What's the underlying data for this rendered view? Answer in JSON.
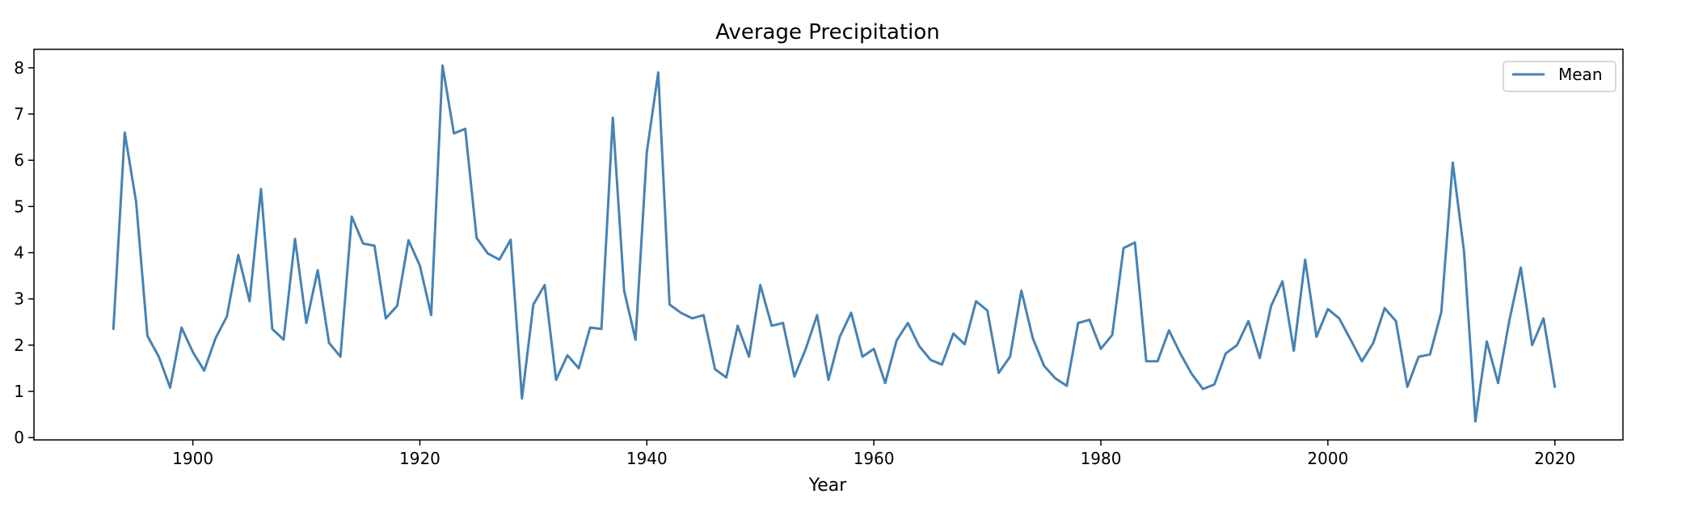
{
  "chart_data": {
    "type": "line",
    "title": "Average Precipitation",
    "xlabel": "Year",
    "ylabel": "",
    "xlim": [
      1886,
      2026
    ],
    "ylim": [
      -0.05,
      8.4
    ],
    "xticks": [
      1900,
      1920,
      1940,
      1960,
      1980,
      2000,
      2020
    ],
    "yticks": [
      0,
      1,
      2,
      3,
      4,
      5,
      6,
      7,
      8
    ],
    "grid": false,
    "legend": "top-right",
    "series": [
      {
        "name": "Mean",
        "color": "#4682b4",
        "x": [
          1893,
          1894,
          1895,
          1896,
          1897,
          1898,
          1899,
          1900,
          1901,
          1902,
          1903,
          1904,
          1905,
          1906,
          1907,
          1908,
          1909,
          1910,
          1911,
          1912,
          1913,
          1914,
          1915,
          1916,
          1917,
          1918,
          1919,
          1920,
          1921,
          1922,
          1923,
          1924,
          1925,
          1926,
          1927,
          1928,
          1929,
          1930,
          1931,
          1932,
          1933,
          1934,
          1935,
          1936,
          1937,
          1938,
          1939,
          1940,
          1941,
          1942,
          1943,
          1944,
          1945,
          1946,
          1947,
          1948,
          1949,
          1950,
          1951,
          1952,
          1953,
          1954,
          1955,
          1956,
          1957,
          1958,
          1959,
          1960,
          1961,
          1962,
          1963,
          1964,
          1965,
          1966,
          1967,
          1968,
          1969,
          1970,
          1971,
          1972,
          1973,
          1974,
          1975,
          1976,
          1977,
          1978,
          1979,
          1980,
          1981,
          1982,
          1983,
          1984,
          1985,
          1986,
          1987,
          1988,
          1989,
          1990,
          1991,
          1992,
          1993,
          1994,
          1995,
          1996,
          1997,
          1998,
          1999,
          2000,
          2001,
          2002,
          2003,
          2004,
          2005,
          2006,
          2007,
          2008,
          2009,
          2010,
          2011,
          2012,
          2013,
          2014,
          2015,
          2016,
          2017,
          2018,
          2019,
          2020
        ],
        "y": [
          2.35,
          6.6,
          5.1,
          2.2,
          1.75,
          1.08,
          2.38,
          1.85,
          1.45,
          2.15,
          2.62,
          3.95,
          2.95,
          5.38,
          2.35,
          2.12,
          4.3,
          2.48,
          3.62,
          2.05,
          1.75,
          4.78,
          4.2,
          4.15,
          2.58,
          2.85,
          4.27,
          3.72,
          2.65,
          8.05,
          6.58,
          6.68,
          4.32,
          3.98,
          3.85,
          4.28,
          0.85,
          2.88,
          3.3,
          1.25,
          1.78,
          1.5,
          2.38,
          2.35,
          6.92,
          3.18,
          2.12,
          6.18,
          7.9,
          2.88,
          2.7,
          2.58,
          2.65,
          1.48,
          1.3,
          2.42,
          1.75,
          3.3,
          2.42,
          2.48,
          1.32,
          1.92,
          2.65,
          1.25,
          2.18,
          2.7,
          1.75,
          1.92,
          1.18,
          2.1,
          2.48,
          1.98,
          1.68,
          1.58,
          2.25,
          2.02,
          2.95,
          2.75,
          1.4,
          1.75,
          3.18,
          2.15,
          1.55,
          1.28,
          1.12,
          2.48,
          2.55,
          1.92,
          2.22,
          4.1,
          4.22,
          1.65,
          1.65,
          2.32,
          1.82,
          1.38,
          1.05,
          1.15,
          1.82,
          2.0,
          2.52,
          1.72,
          2.85,
          3.38,
          1.88,
          3.85,
          2.18,
          2.78,
          2.58,
          2.12,
          1.65,
          2.05,
          2.8,
          2.52,
          1.1,
          1.75,
          1.8,
          2.72,
          5.95,
          4.02,
          0.35,
          2.08,
          1.18,
          2.55,
          3.68,
          2.0,
          2.58,
          1.1
        ]
      }
    ]
  }
}
